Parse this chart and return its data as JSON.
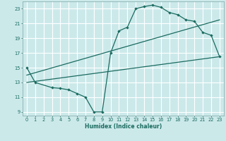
{
  "background_color": "#cce9ea",
  "grid_color": "#ffffff",
  "line_color": "#1a6b60",
  "xlabel": "Humidex (Indice chaleur)",
  "xlim": [
    -0.5,
    23.5
  ],
  "ylim": [
    8.5,
    24.0
  ],
  "yticks": [
    9,
    11,
    13,
    15,
    17,
    19,
    21,
    23
  ],
  "xticks": [
    0,
    1,
    2,
    3,
    4,
    5,
    6,
    7,
    8,
    9,
    10,
    11,
    12,
    13,
    14,
    15,
    16,
    17,
    18,
    19,
    20,
    21,
    22,
    23
  ],
  "curve1_x": [
    0,
    1,
    3,
    4,
    5,
    6,
    7,
    8,
    9,
    10,
    11,
    12,
    13,
    14,
    15,
    16,
    17,
    18,
    19,
    20,
    21,
    22,
    23
  ],
  "curve1_y": [
    15.0,
    13.0,
    12.3,
    12.2,
    12.0,
    11.5,
    11.0,
    9.0,
    9.0,
    17.0,
    20.0,
    20.5,
    23.0,
    23.3,
    23.5,
    23.2,
    22.5,
    22.2,
    21.5,
    21.3,
    19.8,
    19.4,
    16.5
  ],
  "line2_x": [
    0,
    23
  ],
  "line2_y": [
    14.0,
    21.5
  ],
  "line3_x": [
    0,
    23
  ],
  "line3_y": [
    13.0,
    16.5
  ]
}
